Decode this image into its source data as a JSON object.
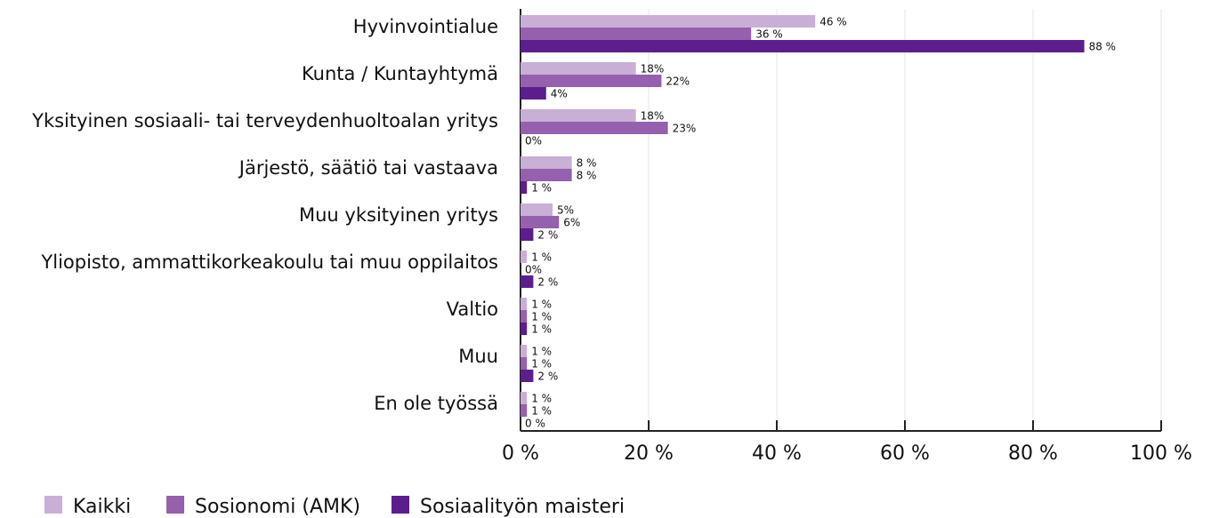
{
  "chart_data": {
    "type": "hbar",
    "categories": [
      "Hyvinvointialue",
      "Kunta / Kuntayhtymä",
      "Yksityinen sosiaali- tai terveydenhuoltoalan yritys",
      "Järjestö, säätiö tai vastaava",
      "Muu yksityinen yritys",
      "Yliopisto, ammattikorkeakoulu tai muu oppilaitos",
      "Valtio",
      "Muu",
      "En ole työssä"
    ],
    "series": [
      {
        "name": "Kaikki",
        "color": "#c9afd6",
        "values": [
          46,
          18,
          18,
          8,
          5,
          1,
          1,
          1,
          1
        ],
        "value_labels": [
          "46 %",
          "18%",
          "18%",
          "8 %",
          "5%",
          "1 %",
          "1 %",
          "1 %",
          "1 %"
        ]
      },
      {
        "name": "Sosionomi (AMK)",
        "color": "#9560ad",
        "values": [
          36,
          22,
          23,
          8,
          6,
          0,
          1,
          1,
          1
        ],
        "value_labels": [
          "36 %",
          "22%",
          "23%",
          "8 %",
          "6%",
          "0%",
          "1 %",
          "1 %",
          "1 %"
        ]
      },
      {
        "name": "Sosiaalityön maisteri",
        "color": "#5c1e8c",
        "values": [
          88,
          4,
          0,
          1,
          2,
          2,
          1,
          2,
          0
        ],
        "value_labels": [
          "88 %",
          "4%",
          "0%",
          "1 %",
          "2 %",
          "2 %",
          "1 %",
          "2 %",
          "0 %"
        ]
      }
    ],
    "xlim": [
      0,
      100
    ],
    "xticks": [
      {
        "value": 0,
        "label": "0 %"
      },
      {
        "value": 20,
        "label": "20 %"
      },
      {
        "value": 40,
        "label": "40 %"
      },
      {
        "value": 60,
        "label": "60 %"
      },
      {
        "value": 80,
        "label": "80 %"
      },
      {
        "value": 100,
        "label": "100 %"
      }
    ],
    "grid": true,
    "legend": "bottom-left"
  }
}
